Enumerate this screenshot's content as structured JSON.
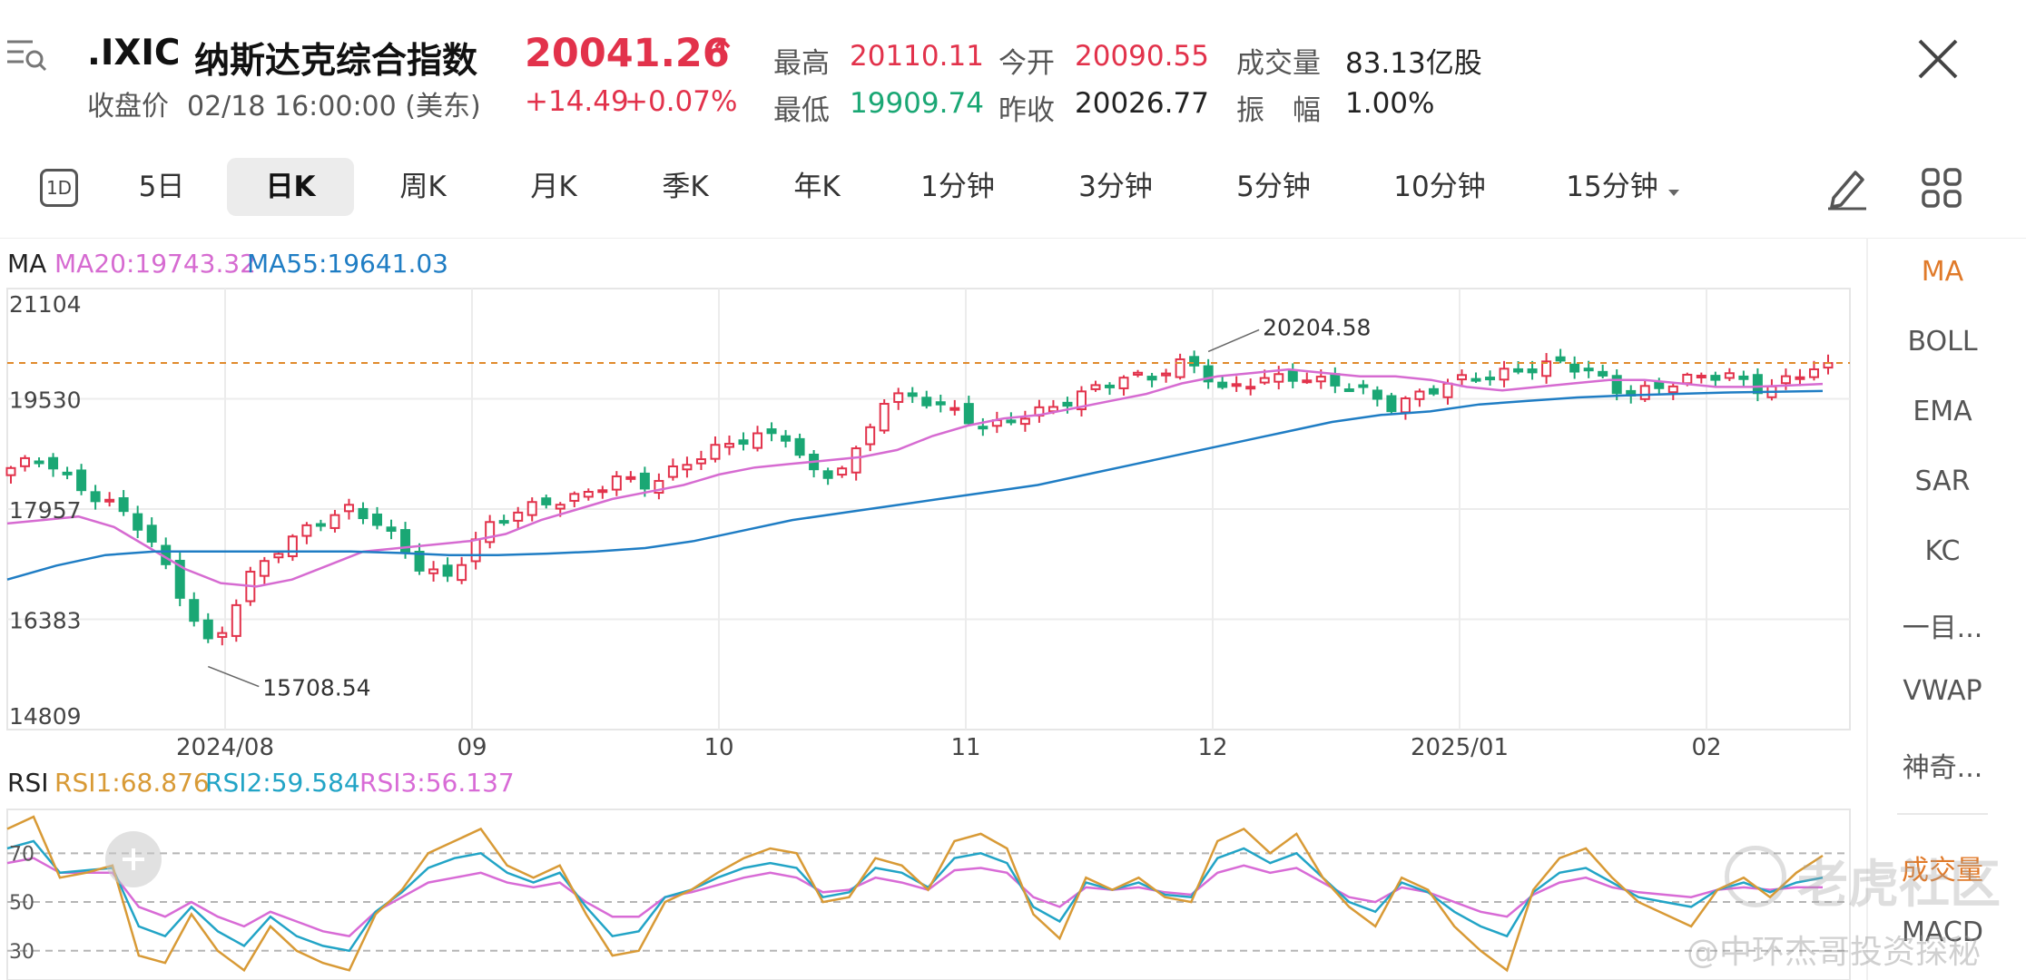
{
  "header": {
    "ticker": ".IXIC",
    "name": "纳斯达克综合指数",
    "price": "20041.26",
    "price_arrow": "↑",
    "change": "+14.49",
    "change_pct": "+0.07%",
    "close_label": "收盘价",
    "close_time": "02/18 16:00:00 (美东)",
    "stats": {
      "high_label": "最高",
      "high": "20110.11",
      "open_label": "今开",
      "open": "20090.55",
      "volume_label": "成交量",
      "volume": "83.13亿股",
      "low_label": "最低",
      "low": "19909.74",
      "prev_close_label": "昨收",
      "prev_close": "20026.77",
      "amplitude_label": "振　幅",
      "amplitude": "1.00%"
    }
  },
  "tabs": {
    "oneday_icon": "1D",
    "items": [
      "5日",
      "日K",
      "周K",
      "月K",
      "季K",
      "年K",
      "1分钟",
      "3分钟",
      "5分钟",
      "10分钟",
      "15分钟"
    ],
    "active": "日K"
  },
  "indicators": {
    "items": [
      "MA",
      "BOLL",
      "EMA",
      "SAR",
      "KC",
      "一目...",
      "VWAP",
      "神奇...",
      "成交量",
      "MACD"
    ],
    "active": "MA"
  },
  "ma_legend": {
    "label": "MA",
    "ma20": "MA20:19743.32",
    "ma55": "MA55:19641.03"
  },
  "rsi_legend": {
    "label": "RSI",
    "rsi1": "RSI1:68.876",
    "rsi2": "RSI2:59.584",
    "rsi3": "RSI3:56.137"
  },
  "watermark": {
    "brand": "老虎社区",
    "author": "@中环杰哥投资探秘"
  },
  "colors": {
    "up": "#e2324b",
    "down": "#1aa774",
    "ma20": "#d66bd1",
    "ma55": "#1f7dc4",
    "rsi1": "#d89a36",
    "rsi2": "#22a4c6",
    "rsi3": "#d86bd6",
    "accent": "#e07a2a"
  },
  "chart_data": [
    {
      "type": "candlestick",
      "title": "",
      "y_ticks": [
        "21104",
        "19530",
        "17957",
        "16383",
        "14809"
      ],
      "ylim": [
        14809,
        21104
      ],
      "x_ticks": [
        "2024/08",
        "09",
        "10",
        "11",
        "12",
        "2025/01",
        "02"
      ],
      "annotations": {
        "high": "20204.58",
        "low": "15708.54"
      },
      "last_close": 20041.26,
      "close_path": [
        18500,
        18700,
        18300,
        18000,
        17600,
        16800,
        15950,
        16900,
        17400,
        17800,
        17950,
        17700,
        17200,
        17000,
        17600,
        17900,
        18100,
        18150,
        18350,
        18300,
        18650,
        18800,
        18950,
        19050,
        18400,
        18600,
        19550,
        19600,
        19350,
        19050,
        19300,
        19450,
        19600,
        19800,
        19900,
        20100,
        19600,
        19800,
        19900,
        19750,
        19650,
        19450,
        19650,
        19750,
        19850,
        20000,
        20050,
        19850,
        19600,
        19750,
        19800,
        19850,
        19700,
        19850,
        20041
      ],
      "series": [
        {
          "name": "MA20",
          "values": [
            17750,
            17800,
            17850,
            17700,
            17400,
            17100,
            16900,
            16850,
            16950,
            17150,
            17350,
            17400,
            17450,
            17500,
            17600,
            17800,
            17950,
            18100,
            18200,
            18300,
            18450,
            18550,
            18600,
            18650,
            18700,
            18800,
            19000,
            19150,
            19250,
            19300,
            19400,
            19500,
            19600,
            19750,
            19850,
            19900,
            19950,
            19900,
            19850,
            19850,
            19800,
            19700,
            19650,
            19700,
            19750,
            19800,
            19800,
            19750,
            19700,
            19700,
            19720,
            19743
          ]
        },
        {
          "name": "MA55",
          "values": [
            16950,
            17150,
            17300,
            17350,
            17350,
            17350,
            17350,
            17350,
            17330,
            17300,
            17300,
            17320,
            17350,
            17400,
            17500,
            17650,
            17800,
            17900,
            18000,
            18100,
            18200,
            18300,
            18450,
            18600,
            18750,
            18900,
            19050,
            19200,
            19300,
            19350,
            19450,
            19500,
            19550,
            19580,
            19600,
            19620,
            19630,
            19641
          ]
        }
      ]
    },
    {
      "type": "line",
      "title": "",
      "y_ticks": [
        "70",
        "50",
        "30"
      ],
      "ylim": [
        18,
        88
      ],
      "series": [
        {
          "name": "RSI1",
          "values": [
            80,
            85,
            60,
            62,
            65,
            28,
            25,
            45,
            30,
            22,
            40,
            30,
            25,
            22,
            45,
            55,
            70,
            75,
            80,
            65,
            60,
            65,
            45,
            28,
            30,
            50,
            55,
            62,
            68,
            72,
            70,
            50,
            52,
            68,
            65,
            55,
            75,
            78,
            72,
            45,
            35,
            60,
            55,
            60,
            52,
            50,
            75,
            80,
            70,
            78,
            60,
            48,
            40,
            60,
            55,
            40,
            30,
            22,
            55,
            68,
            72,
            60,
            50,
            45,
            40,
            55,
            60,
            52,
            62,
            69
          ]
        },
        {
          "name": "RSI2",
          "values": [
            72,
            75,
            62,
            63,
            64,
            40,
            36,
            48,
            38,
            32,
            44,
            36,
            32,
            30,
            46,
            54,
            64,
            68,
            70,
            62,
            58,
            62,
            48,
            36,
            38,
            52,
            55,
            60,
            64,
            66,
            64,
            52,
            54,
            64,
            62,
            56,
            68,
            70,
            66,
            48,
            42,
            58,
            55,
            58,
            53,
            52,
            68,
            72,
            66,
            70,
            60,
            50,
            46,
            58,
            54,
            46,
            40,
            36,
            54,
            62,
            64,
            58,
            52,
            50,
            48,
            55,
            58,
            54,
            58,
            60
          ]
        },
        {
          "name": "RSI3",
          "values": [
            66,
            68,
            62,
            62,
            62,
            48,
            44,
            50,
            44,
            40,
            46,
            42,
            38,
            36,
            46,
            52,
            58,
            60,
            62,
            58,
            56,
            58,
            50,
            44,
            44,
            52,
            54,
            57,
            60,
            62,
            60,
            54,
            55,
            60,
            58,
            55,
            63,
            64,
            62,
            52,
            48,
            56,
            55,
            56,
            54,
            53,
            62,
            65,
            62,
            64,
            58,
            52,
            50,
            56,
            54,
            50,
            46,
            44,
            53,
            58,
            60,
            56,
            54,
            53,
            52,
            55,
            56,
            55,
            56,
            56
          ]
        }
      ]
    }
  ]
}
